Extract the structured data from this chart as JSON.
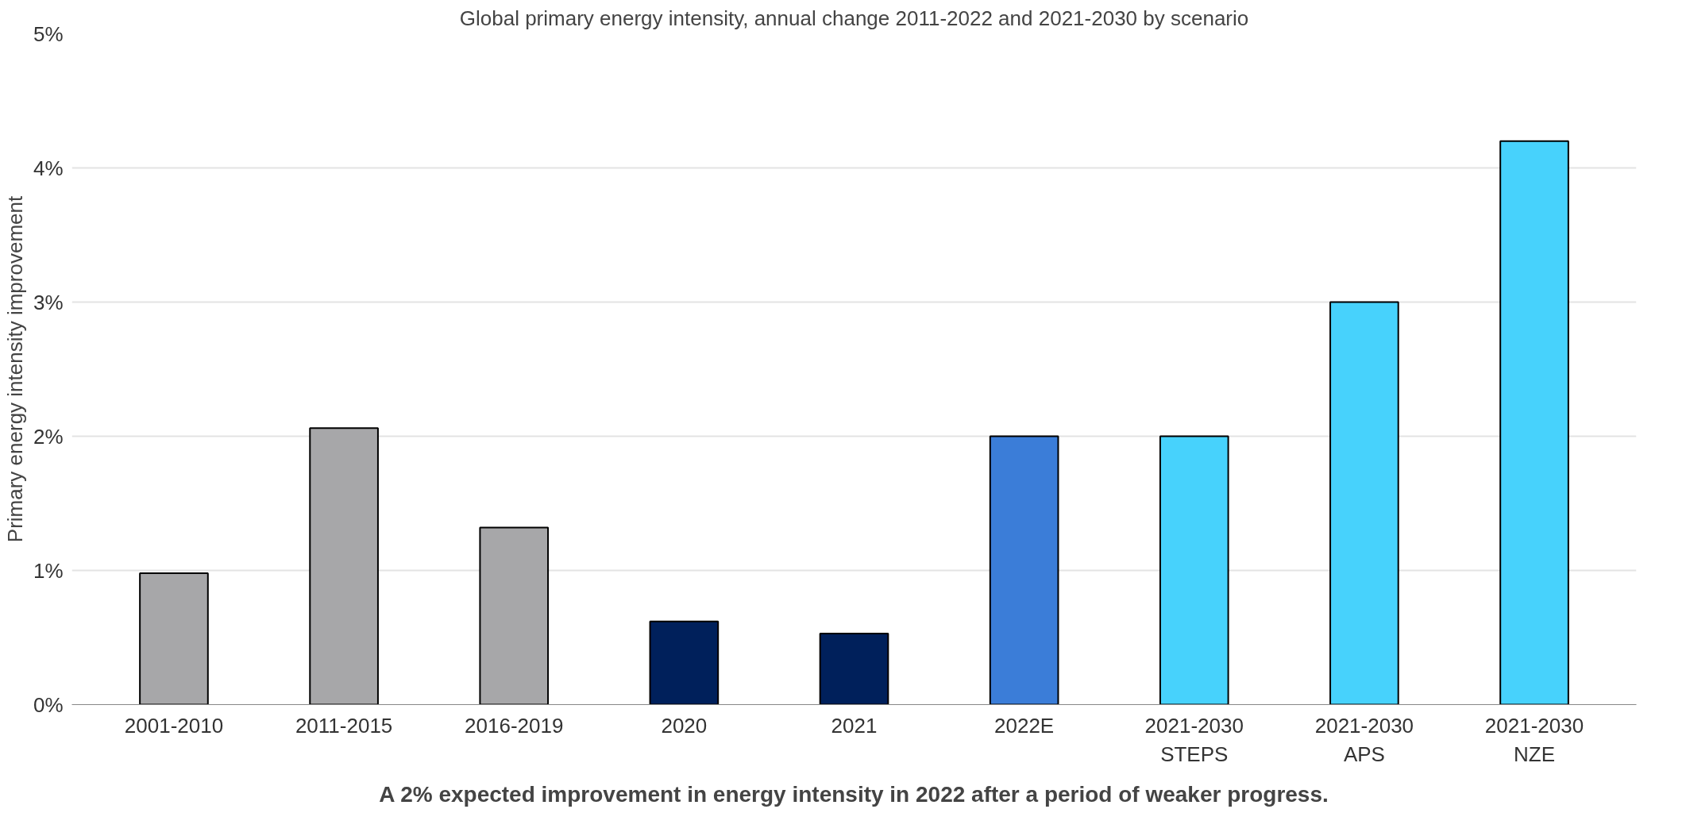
{
  "chart_data": {
    "type": "bar",
    "title": "Global primary energy intensity, annual change 2011-2022 and 2021-2030 by scenario",
    "ylabel": "Primary energy intensity improvement",
    "categories": [
      "2001-2010",
      "2011-2015",
      "2016-2019",
      "2020",
      "2021",
      "2022E",
      "2021-2030\nSTEPS",
      "2021-2030\nAPS",
      "2021-2030\nNZE"
    ],
    "values": [
      0.98,
      2.06,
      1.32,
      0.62,
      0.53,
      2.0,
      2.0,
      3.0,
      4.2
    ],
    "colors": [
      "#a7a7a9",
      "#a7a7a9",
      "#a7a7a9",
      "#00205b",
      "#00205b",
      "#3b7dd8",
      "#47d2fc",
      "#47d2fc",
      "#47d2fc"
    ],
    "ylim": [
      0,
      5
    ],
    "yticks": [
      {
        "value": 0,
        "label": "0%"
      },
      {
        "value": 1,
        "label": "1%"
      },
      {
        "value": 2,
        "label": "2%"
      },
      {
        "value": 3,
        "label": "3%"
      },
      {
        "value": 4,
        "label": "4%"
      },
      {
        "value": 5,
        "label": "5%"
      }
    ],
    "grid": "y",
    "annotations": [
      "A 2% expected improvement in energy intensity in 2022 after a period of weaker progress."
    ]
  }
}
